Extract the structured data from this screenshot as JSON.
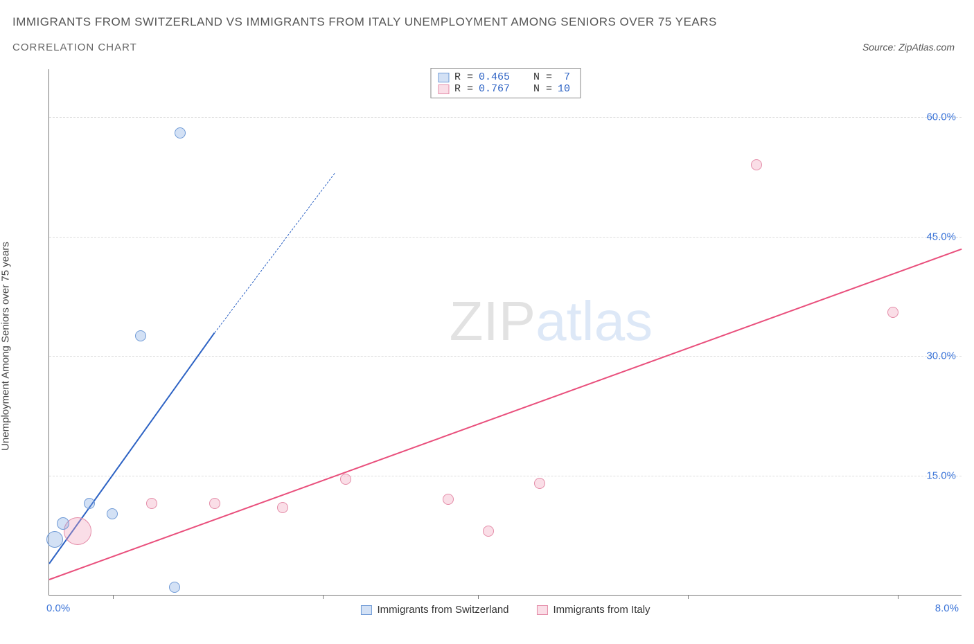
{
  "title": "Immigrants from Switzerland vs Immigrants from Italy Unemployment Among Seniors over 75 years",
  "subtitle": "Correlation Chart",
  "source": "Source: ZipAtlas.com",
  "ylabel": "Unemployment Among Seniors over 75 years",
  "watermark_a": "ZIP",
  "watermark_b": "atlas",
  "chart": {
    "type": "scatter",
    "xlim": [
      0,
      8
    ],
    "ylim": [
      0,
      66
    ],
    "x_min_label": "0.0%",
    "x_max_label": "8.0%",
    "y_ticks": [
      15,
      30,
      45,
      60
    ],
    "y_tick_labels": [
      "15.0%",
      "30.0%",
      "45.0%",
      "60.0%"
    ],
    "x_minor_ticks_pct": [
      7,
      30,
      47,
      70,
      93
    ],
    "grid_color": "#dddddd",
    "background_color": "#ffffff",
    "tick_label_color": "#3b74d8"
  },
  "series": {
    "switzerland": {
      "label": "Immigrants from Switzerland",
      "color_fill": "rgba(130,170,225,0.35)",
      "color_stroke": "#6f9ad6",
      "line_color": "#2c62c4",
      "R_label": "R =",
      "R": "0.465",
      "N_label": "N =",
      "N": " 7",
      "trend": {
        "x1": 0,
        "y1": 4,
        "x2_solid": 1.45,
        "y2_solid": 33,
        "x2_dash": 2.5,
        "y2_dash": 53
      },
      "points": [
        {
          "x": 0.05,
          "y": 7.0,
          "r": 12
        },
        {
          "x": 0.12,
          "y": 9.0,
          "r": 9
        },
        {
          "x": 0.35,
          "y": 11.5,
          "r": 8
        },
        {
          "x": 0.55,
          "y": 10.2,
          "r": 8
        },
        {
          "x": 0.8,
          "y": 32.5,
          "r": 8
        },
        {
          "x": 1.1,
          "y": 1.0,
          "r": 8
        },
        {
          "x": 1.15,
          "y": 58.0,
          "r": 8
        }
      ]
    },
    "italy": {
      "label": "Immigrants from Italy",
      "color_fill": "rgba(240,160,185,0.35)",
      "color_stroke": "#e48ca8",
      "line_color": "#e94f7c",
      "R_label": "R =",
      "R": "0.767",
      "N_label": "N =",
      "N": "10",
      "trend": {
        "x1": 0,
        "y1": 2,
        "x2_solid": 8.0,
        "y2_solid": 43.5
      },
      "points": [
        {
          "x": 0.25,
          "y": 8.0,
          "r": 20
        },
        {
          "x": 0.9,
          "y": 11.5,
          "r": 8
        },
        {
          "x": 1.45,
          "y": 11.5,
          "r": 8
        },
        {
          "x": 2.05,
          "y": 11.0,
          "r": 8
        },
        {
          "x": 2.6,
          "y": 14.5,
          "r": 8
        },
        {
          "x": 3.5,
          "y": 12.0,
          "r": 8
        },
        {
          "x": 3.85,
          "y": 8.0,
          "r": 8
        },
        {
          "x": 4.3,
          "y": 14.0,
          "r": 8
        },
        {
          "x": 6.2,
          "y": 54.0,
          "r": 8
        },
        {
          "x": 7.4,
          "y": 35.5,
          "r": 8
        }
      ]
    }
  }
}
